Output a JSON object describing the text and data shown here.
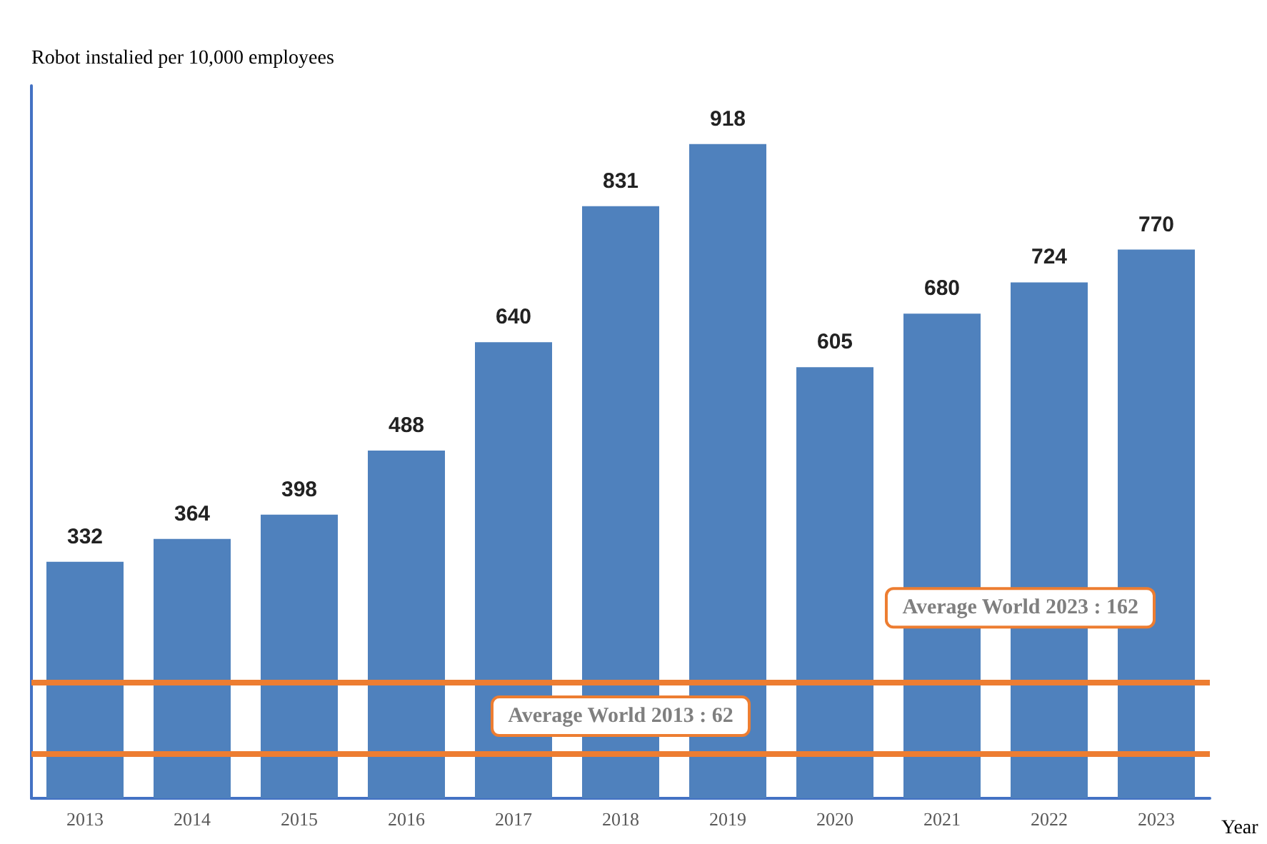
{
  "chart_data": {
    "type": "bar",
    "ylabel": "Robot instalied per 10,000 employees",
    "xlabel": "Year",
    "categories": [
      "2013",
      "2014",
      "2015",
      "2016",
      "2017",
      "2018",
      "2019",
      "2020",
      "2021",
      "2022",
      "2023"
    ],
    "values": [
      332,
      364,
      398,
      488,
      640,
      831,
      918,
      605,
      680,
      724,
      770
    ],
    "color": "#4f81bd",
    "data_labels": true,
    "grid": false,
    "ref_lines": [
      {
        "axis": "y",
        "value": 162,
        "label": "Average World 2023 : 162",
        "color": "#ed7d31",
        "line_style": "solid"
      },
      {
        "axis": "y",
        "value": 62,
        "label": "Average World 2013 : 62",
        "color": "#ed7d31",
        "line_style": "solid"
      }
    ]
  }
}
